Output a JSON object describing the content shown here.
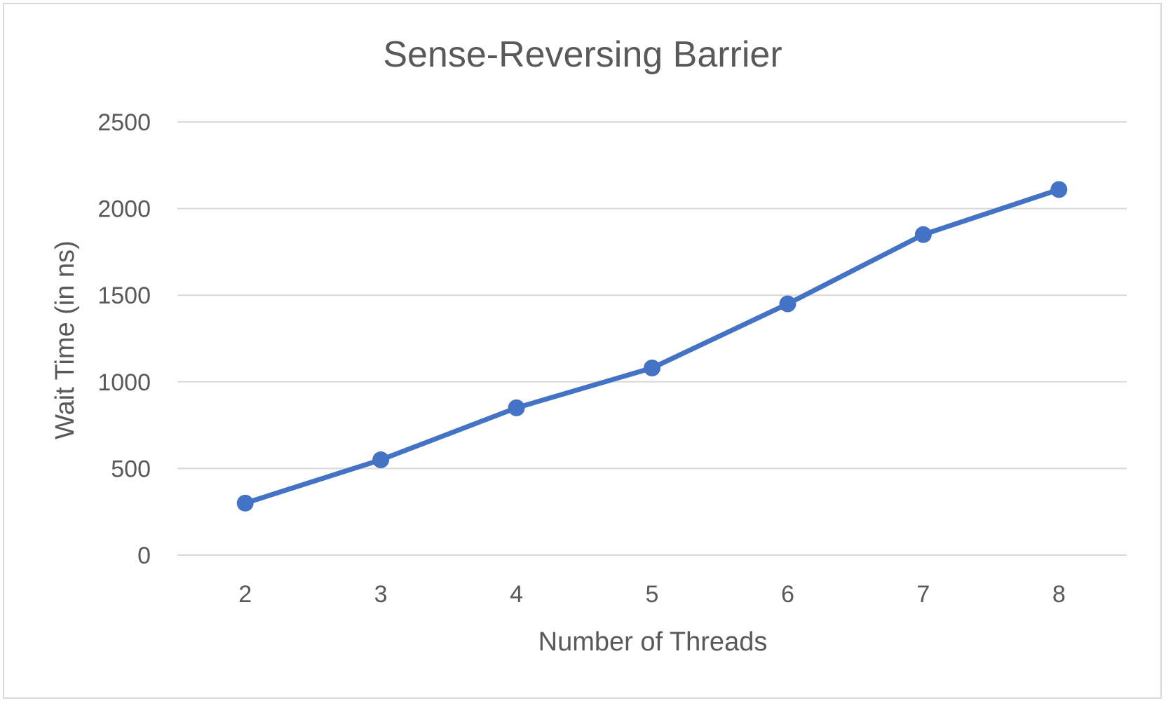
{
  "chart_data": {
    "type": "line",
    "title": "Sense-Reversing Barrier",
    "xlabel": "Number of Threads",
    "ylabel": "Wait Time (in ns)",
    "categories": [
      "2",
      "3",
      "4",
      "5",
      "6",
      "7",
      "8"
    ],
    "y_ticks": [
      "0",
      "500",
      "1000",
      "1500",
      "2000",
      "2500"
    ],
    "ylim": [
      0,
      2500
    ],
    "grid": true,
    "legend": "none",
    "series": [
      {
        "values": [
          300,
          550,
          850,
          1080,
          1450,
          1850,
          2110
        ],
        "color": "#4472c4",
        "marker": "circle"
      }
    ]
  }
}
